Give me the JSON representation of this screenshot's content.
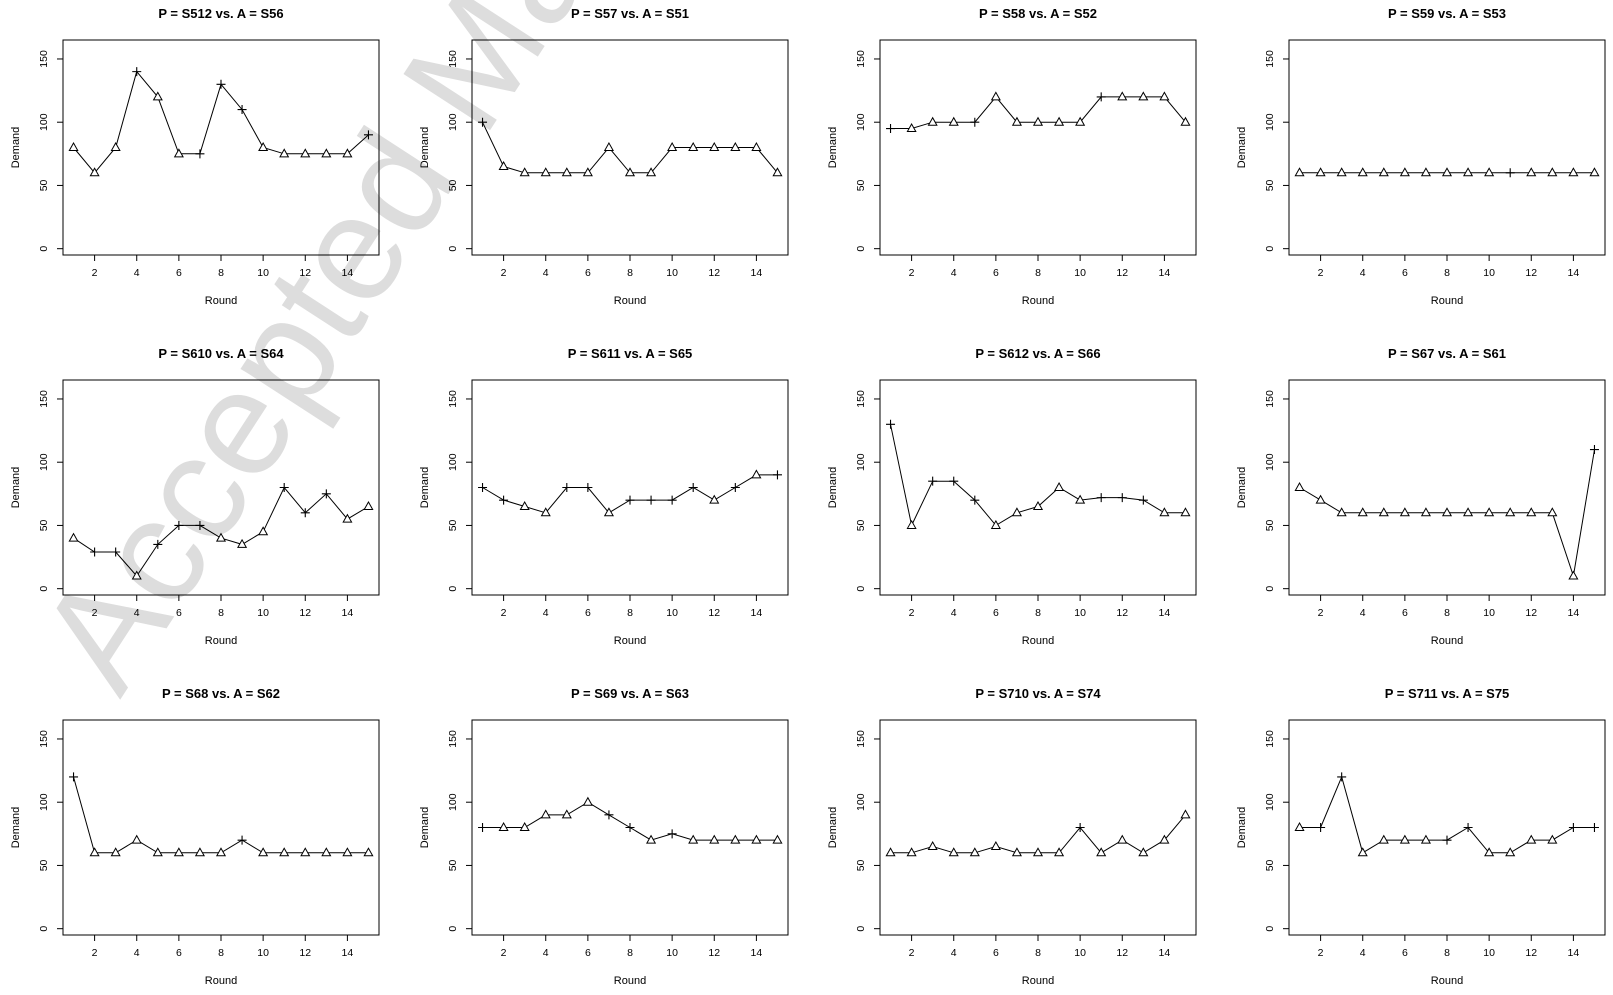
{
  "watermark": "Accepted Ma",
  "chart_data": [
    {
      "type": "line",
      "title": "P = S512  vs.  A = S56",
      "xlabel": "Round",
      "ylabel": "Demand",
      "x": [
        1,
        2,
        3,
        4,
        5,
        6,
        7,
        8,
        9,
        10,
        11,
        12,
        13,
        14,
        15
      ],
      "values": [
        80,
        60,
        80,
        140,
        120,
        75,
        75,
        130,
        110,
        80,
        75,
        75,
        75,
        75,
        90
      ],
      "markers": [
        "triangle",
        "triangle",
        "triangle",
        "plus",
        "triangle",
        "triangle",
        "plus",
        "plus",
        "plus",
        "triangle",
        "triangle",
        "triangle",
        "triangle",
        "triangle",
        "plus"
      ],
      "xlim": [
        0.5,
        15.5
      ],
      "ylim": [
        -5,
        165
      ],
      "xticks": [
        2,
        4,
        6,
        8,
        10,
        12,
        14
      ],
      "yticks": [
        0,
        50,
        100,
        150
      ]
    },
    {
      "type": "line",
      "title": "P = S57  vs.  A = S51",
      "xlabel": "Round",
      "ylabel": "Demand",
      "x": [
        1,
        2,
        3,
        4,
        5,
        6,
        7,
        8,
        9,
        10,
        11,
        12,
        13,
        14,
        15
      ],
      "values": [
        100,
        65,
        60,
        60,
        60,
        60,
        80,
        60,
        60,
        80,
        80,
        80,
        80,
        80,
        60
      ],
      "markers": [
        "plus",
        "triangle",
        "triangle",
        "triangle",
        "triangle",
        "triangle",
        "triangle",
        "triangle",
        "triangle",
        "triangle",
        "triangle",
        "triangle",
        "triangle",
        "triangle",
        "triangle"
      ],
      "xlim": [
        0.5,
        15.5
      ],
      "ylim": [
        -5,
        165
      ],
      "xticks": [
        2,
        4,
        6,
        8,
        10,
        12,
        14
      ],
      "yticks": [
        0,
        50,
        100,
        150
      ]
    },
    {
      "type": "line",
      "title": "P = S58  vs.  A = S52",
      "xlabel": "Round",
      "ylabel": "Demand",
      "x": [
        1,
        2,
        3,
        4,
        5,
        6,
        7,
        8,
        9,
        10,
        11,
        12,
        13,
        14,
        15
      ],
      "values": [
        95,
        95,
        100,
        100,
        100,
        120,
        100,
        100,
        100,
        100,
        120,
        120,
        120,
        120,
        100
      ],
      "markers": [
        "plus",
        "triangle",
        "triangle",
        "triangle",
        "plus",
        "triangle",
        "triangle",
        "triangle",
        "triangle",
        "triangle",
        "plus",
        "triangle",
        "triangle",
        "triangle",
        "triangle"
      ],
      "xlim": [
        0.5,
        15.5
      ],
      "ylim": [
        -5,
        165
      ],
      "xticks": [
        2,
        4,
        6,
        8,
        10,
        12,
        14
      ],
      "yticks": [
        0,
        50,
        100,
        150
      ]
    },
    {
      "type": "line",
      "title": "P = S59  vs.  A = S53",
      "xlabel": "Round",
      "ylabel": "Demand",
      "x": [
        1,
        2,
        3,
        4,
        5,
        6,
        7,
        8,
        9,
        10,
        11,
        12,
        13,
        14,
        15
      ],
      "values": [
        60,
        60,
        60,
        60,
        60,
        60,
        60,
        60,
        60,
        60,
        60,
        60,
        60,
        60,
        60
      ],
      "markers": [
        "triangle",
        "triangle",
        "triangle",
        "triangle",
        "triangle",
        "triangle",
        "triangle",
        "triangle",
        "triangle",
        "triangle",
        "plus",
        "triangle",
        "triangle",
        "triangle",
        "triangle"
      ],
      "xlim": [
        0.5,
        15.5
      ],
      "ylim": [
        -5,
        165
      ],
      "xticks": [
        2,
        4,
        6,
        8,
        10,
        12,
        14
      ],
      "yticks": [
        0,
        50,
        100,
        150
      ]
    },
    {
      "type": "line",
      "title": "P = S610  vs.  A = S64",
      "xlabel": "Round",
      "ylabel": "Demand",
      "x": [
        1,
        2,
        3,
        4,
        5,
        6,
        7,
        8,
        9,
        10,
        11,
        12,
        13,
        14,
        15
      ],
      "values": [
        40,
        29,
        29,
        10,
        35,
        50,
        50,
        40,
        35,
        45,
        80,
        60,
        75,
        55,
        65
      ],
      "markers": [
        "triangle",
        "plus",
        "plus",
        "triangle",
        "plus",
        "plus",
        "plus",
        "triangle",
        "triangle",
        "triangle",
        "plus",
        "plus",
        "plus",
        "triangle",
        "triangle"
      ],
      "xlim": [
        0.5,
        15.5
      ],
      "ylim": [
        -5,
        165
      ],
      "xticks": [
        2,
        4,
        6,
        8,
        10,
        12,
        14
      ],
      "yticks": [
        0,
        50,
        100,
        150
      ]
    },
    {
      "type": "line",
      "title": "P = S611  vs.  A = S65",
      "xlabel": "Round",
      "ylabel": "Demand",
      "x": [
        1,
        2,
        3,
        4,
        5,
        6,
        7,
        8,
        9,
        10,
        11,
        12,
        13,
        14,
        15
      ],
      "values": [
        80,
        70,
        65,
        60,
        80,
        80,
        60,
        70,
        70,
        70,
        80,
        70,
        80,
        90,
        90
      ],
      "markers": [
        "plus",
        "plus",
        "triangle",
        "triangle",
        "plus",
        "plus",
        "triangle",
        "plus",
        "plus",
        "plus",
        "plus",
        "triangle",
        "plus",
        "triangle",
        "plus"
      ],
      "xlim": [
        0.5,
        15.5
      ],
      "ylim": [
        -5,
        165
      ],
      "xticks": [
        2,
        4,
        6,
        8,
        10,
        12,
        14
      ],
      "yticks": [
        0,
        50,
        100,
        150
      ]
    },
    {
      "type": "line",
      "title": "P = S612  vs.  A = S66",
      "xlabel": "Round",
      "ylabel": "Demand",
      "x": [
        1,
        2,
        3,
        4,
        5,
        6,
        7,
        8,
        9,
        10,
        11,
        12,
        13,
        14,
        15
      ],
      "values": [
        130,
        50,
        85,
        85,
        70,
        50,
        60,
        65,
        80,
        70,
        72,
        72,
        70,
        60,
        60
      ],
      "markers": [
        "plus",
        "triangle",
        "plus",
        "plus",
        "plus",
        "triangle",
        "triangle",
        "triangle",
        "triangle",
        "triangle",
        "plus",
        "plus",
        "plus",
        "triangle",
        "triangle"
      ],
      "xlim": [
        0.5,
        15.5
      ],
      "ylim": [
        -5,
        165
      ],
      "xticks": [
        2,
        4,
        6,
        8,
        10,
        12,
        14
      ],
      "yticks": [
        0,
        50,
        100,
        150
      ]
    },
    {
      "type": "line",
      "title": "P = S67  vs.  A = S61",
      "xlabel": "Round",
      "ylabel": "Demand",
      "x": [
        1,
        2,
        3,
        4,
        5,
        6,
        7,
        8,
        9,
        10,
        11,
        12,
        13,
        14,
        15
      ],
      "values": [
        80,
        70,
        60,
        60,
        60,
        60,
        60,
        60,
        60,
        60,
        60,
        60,
        60,
        10,
        110
      ],
      "markers": [
        "triangle",
        "triangle",
        "triangle",
        "triangle",
        "triangle",
        "triangle",
        "triangle",
        "triangle",
        "triangle",
        "triangle",
        "triangle",
        "triangle",
        "triangle",
        "triangle",
        "plus"
      ],
      "xlim": [
        0.5,
        15.5
      ],
      "ylim": [
        -5,
        165
      ],
      "xticks": [
        2,
        4,
        6,
        8,
        10,
        12,
        14
      ],
      "yticks": [
        0,
        50,
        100,
        150
      ]
    },
    {
      "type": "line",
      "title": "P = S68  vs.  A = S62",
      "xlabel": "Round",
      "ylabel": "Demand",
      "x": [
        1,
        2,
        3,
        4,
        5,
        6,
        7,
        8,
        9,
        10,
        11,
        12,
        13,
        14,
        15
      ],
      "values": [
        120,
        60,
        60,
        70,
        60,
        60,
        60,
        60,
        70,
        60,
        60,
        60,
        60,
        60,
        60
      ],
      "markers": [
        "plus",
        "triangle",
        "triangle",
        "triangle",
        "triangle",
        "triangle",
        "triangle",
        "triangle",
        "plus",
        "triangle",
        "triangle",
        "triangle",
        "triangle",
        "triangle",
        "triangle"
      ],
      "xlim": [
        0.5,
        15.5
      ],
      "ylim": [
        -5,
        165
      ],
      "xticks": [
        2,
        4,
        6,
        8,
        10,
        12,
        14
      ],
      "yticks": [
        0,
        50,
        100,
        150
      ]
    },
    {
      "type": "line",
      "title": "P = S69  vs.  A = S63",
      "xlabel": "Round",
      "ylabel": "Demand",
      "x": [
        1,
        2,
        3,
        4,
        5,
        6,
        7,
        8,
        9,
        10,
        11,
        12,
        13,
        14,
        15
      ],
      "values": [
        80,
        80,
        80,
        90,
        90,
        100,
        90,
        80,
        70,
        75,
        70,
        70,
        70,
        70,
        70
      ],
      "markers": [
        "plus",
        "triangle",
        "triangle",
        "triangle",
        "triangle",
        "triangle",
        "plus",
        "plus",
        "triangle",
        "plus",
        "triangle",
        "triangle",
        "triangle",
        "triangle",
        "triangle"
      ],
      "xlim": [
        0.5,
        15.5
      ],
      "ylim": [
        -5,
        165
      ],
      "xticks": [
        2,
        4,
        6,
        8,
        10,
        12,
        14
      ],
      "yticks": [
        0,
        50,
        100,
        150
      ]
    },
    {
      "type": "line",
      "title": "P = S710  vs.  A = S74",
      "xlabel": "Round",
      "ylabel": "Demand",
      "x": [
        1,
        2,
        3,
        4,
        5,
        6,
        7,
        8,
        9,
        10,
        11,
        12,
        13,
        14,
        15
      ],
      "values": [
        60,
        60,
        65,
        60,
        60,
        65,
        60,
        60,
        60,
        80,
        60,
        70,
        60,
        70,
        90
      ],
      "markers": [
        "triangle",
        "triangle",
        "triangle",
        "triangle",
        "triangle",
        "triangle",
        "triangle",
        "triangle",
        "triangle",
        "plus",
        "triangle",
        "triangle",
        "triangle",
        "triangle",
        "triangle"
      ],
      "xlim": [
        0.5,
        15.5
      ],
      "ylim": [
        -5,
        165
      ],
      "xticks": [
        2,
        4,
        6,
        8,
        10,
        12,
        14
      ],
      "yticks": [
        0,
        50,
        100,
        150
      ]
    },
    {
      "type": "line",
      "title": "P = S711  vs.  A = S75",
      "xlabel": "Round",
      "ylabel": "Demand",
      "x": [
        1,
        2,
        3,
        4,
        5,
        6,
        7,
        8,
        9,
        10,
        11,
        12,
        13,
        14,
        15
      ],
      "values": [
        80,
        80,
        120,
        60,
        70,
        70,
        70,
        70,
        80,
        60,
        60,
        70,
        70,
        80,
        80
      ],
      "markers": [
        "triangle",
        "plus",
        "plus",
        "triangle",
        "triangle",
        "triangle",
        "triangle",
        "plus",
        "plus",
        "triangle",
        "triangle",
        "triangle",
        "triangle",
        "plus",
        "plus"
      ],
      "xlim": [
        0.5,
        15.5
      ],
      "ylim": [
        -5,
        165
      ],
      "xticks": [
        2,
        4,
        6,
        8,
        10,
        12,
        14
      ],
      "yticks": [
        0,
        50,
        100,
        150
      ]
    }
  ]
}
